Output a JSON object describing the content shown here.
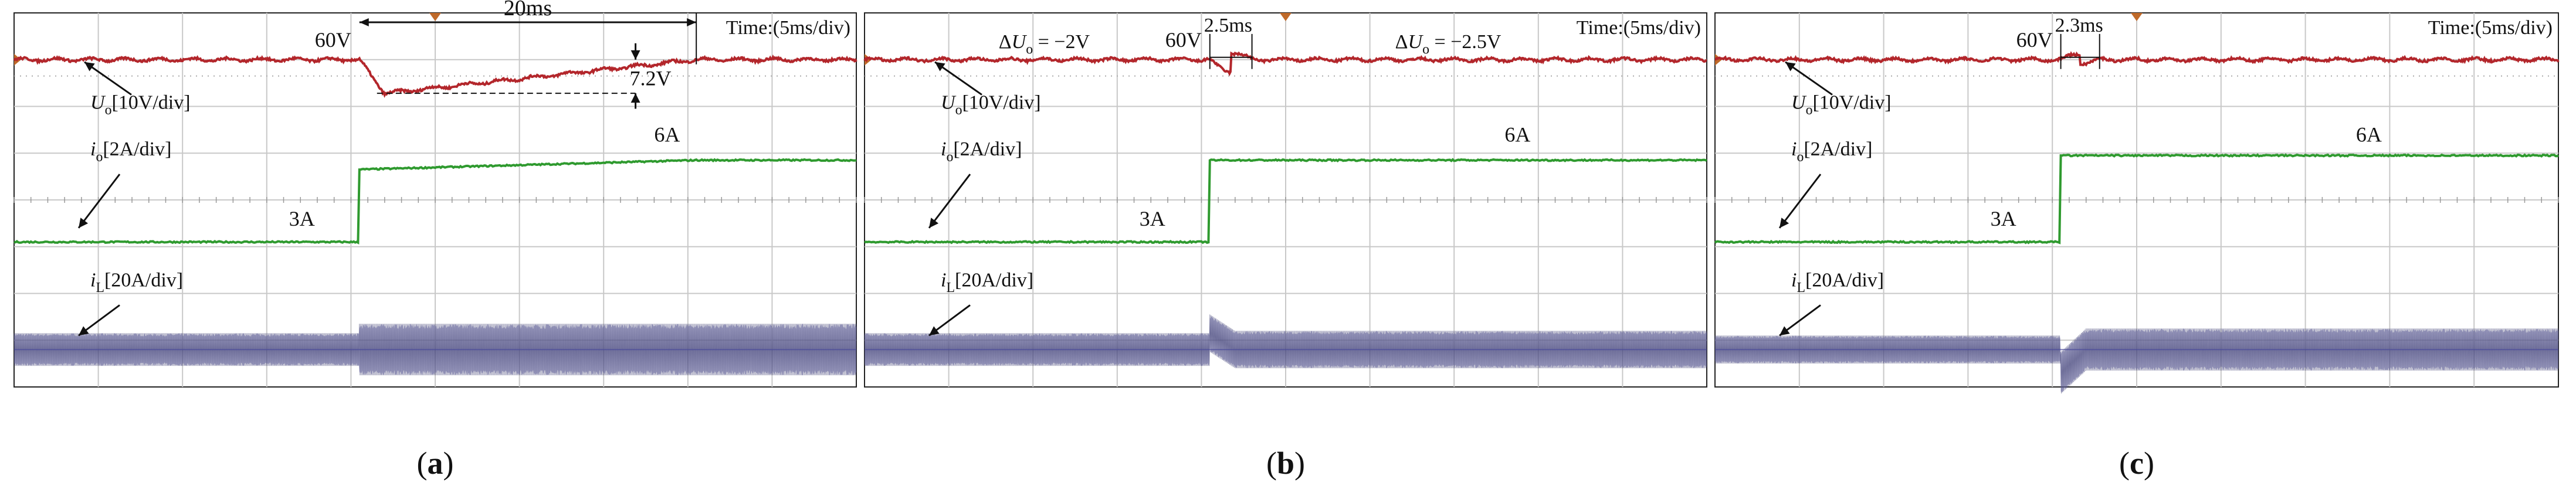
{
  "figure": {
    "description_free": true,
    "captions": [
      "(a)",
      "(b)",
      "(c)"
    ]
  },
  "colors": {
    "voltage": "#b3262b",
    "load_current": "#2f9a2f",
    "inductor_current": "#7f7fb8",
    "inductor_current_dark": "#3c3c70",
    "grid": "#c8c8c8",
    "frame": "#222222",
    "marker": "#c06a2a"
  },
  "chart_data": [
    {
      "type": "line",
      "id": "a",
      "caption": "(a)",
      "time_label": "Time:(5ms/div)",
      "x_unit": "ms",
      "x_per_div": 5,
      "xlim": [
        0,
        50
      ],
      "y_divs": 8,
      "ylim": [
        -4,
        4
      ],
      "event_time_ms": 20.5,
      "series": [
        {
          "name": "U_o",
          "probe": "U",
          "sub": "o",
          "scale": "[10V/div]",
          "kind": "voltage",
          "offset_div": 3.0,
          "pre_level": 0.0,
          "dip": -0.72,
          "recovery_ms": 20,
          "final_level": 0.0,
          "ripple": 0.05
        },
        {
          "name": "i_o",
          "probe": "i",
          "sub": "o",
          "scale": "[2A/div]",
          "kind": "current_step",
          "pre_level_div": -0.9,
          "post_level_div": 0.65,
          "post_settle_div": 0.85,
          "settle_ms": 20
        },
        {
          "name": "i_L",
          "probe": "i",
          "sub": "L",
          "scale": "[20A/div]",
          "kind": "inductor",
          "center_div": -3.2,
          "pre_amp_div": 0.35,
          "post_amp_div": 0.55,
          "transient_peak_div": 0.0
        }
      ],
      "annotations": {
        "voltage_value": "60V",
        "recovery_time": "20ms",
        "dip_value": "7.2V",
        "current_before": "3A",
        "current_after": "6A"
      }
    },
    {
      "type": "line",
      "id": "b",
      "caption": "(b)",
      "time_label": "Time:(5ms/div)",
      "x_unit": "ms",
      "x_per_div": 5,
      "xlim": [
        0,
        50
      ],
      "y_divs": 8,
      "ylim": [
        -4,
        4
      ],
      "event_time_ms": 20.5,
      "series": [
        {
          "name": "U_o",
          "probe": "U",
          "sub": "o",
          "scale": "[10V/div]",
          "kind": "voltage",
          "offset_div": 3.0,
          "pre_level": 0.0,
          "dip": -0.25,
          "recovery_ms": 2.5,
          "final_level": 0.0,
          "ripple": 0.05
        },
        {
          "name": "i_o",
          "probe": "i",
          "sub": "o",
          "scale": "[2A/div]",
          "kind": "current_step",
          "pre_level_div": -0.9,
          "post_level_div": 0.85,
          "post_settle_div": 0.85,
          "settle_ms": 1
        },
        {
          "name": "i_L",
          "probe": "i",
          "sub": "L",
          "scale": "[20A/div]",
          "kind": "inductor",
          "center_div": -3.2,
          "pre_amp_div": 0.35,
          "post_amp_div": 0.4,
          "transient_peak_div": 0.35
        }
      ],
      "annotations": {
        "delta_before_prefix": "ΔU",
        "delta_before_sub": "o",
        "delta_before_value": " = −2V",
        "delta_after_prefix": "ΔU",
        "delta_after_sub": "o",
        "delta_after_value": " = −2.5V",
        "voltage_value": "60V",
        "recovery_time": "2.5ms",
        "current_before": "3A",
        "current_after": "6A"
      }
    },
    {
      "type": "line",
      "id": "c",
      "caption": "(c)",
      "time_label": "Time:(5ms/div)",
      "x_unit": "ms",
      "x_per_div": 5,
      "xlim": [
        0,
        50
      ],
      "y_divs": 8,
      "ylim": [
        -4,
        4
      ],
      "event_time_ms": 20.5,
      "series": [
        {
          "name": "U_o",
          "probe": "U",
          "sub": "o",
          "scale": "[10V/div]",
          "kind": "voltage",
          "offset_div": 3.0,
          "pre_level": 0.0,
          "dip": 0.12,
          "recovery_ms": 2.3,
          "final_level": 0.0,
          "ripple": 0.05
        },
        {
          "name": "i_o",
          "probe": "i",
          "sub": "o",
          "scale": "[2A/div]",
          "kind": "current_step",
          "pre_level_div": -0.9,
          "post_level_div": 0.95,
          "post_settle_div": 0.95,
          "settle_ms": 1
        },
        {
          "name": "i_L",
          "probe": "i",
          "sub": "L",
          "scale": "[20A/div]",
          "kind": "inductor",
          "center_div": -3.2,
          "pre_amp_div": 0.3,
          "post_amp_div": 0.45,
          "transient_peak_div": -0.5
        }
      ],
      "annotations": {
        "voltage_value": "60V",
        "recovery_time": "2.3ms",
        "current_before": "3A",
        "current_after": "6A"
      }
    }
  ]
}
